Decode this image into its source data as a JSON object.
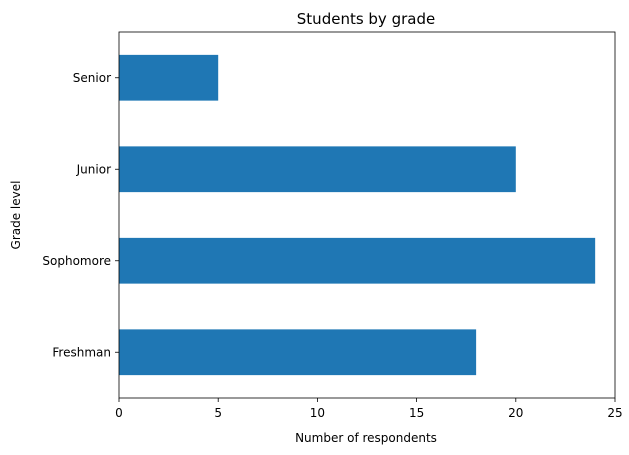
{
  "chart_data": {
    "type": "bar",
    "orientation": "horizontal",
    "title": "Students by grade",
    "xlabel": "Number of respondents",
    "ylabel": "Grade level",
    "categories": [
      "Freshman",
      "Sophomore",
      "Junior",
      "Senior"
    ],
    "values": [
      18,
      24,
      20,
      5
    ],
    "xlim": [
      0,
      25
    ],
    "xticks": [
      0,
      5,
      10,
      15,
      20,
      25
    ],
    "grid": false,
    "bar_color": "#1f77b4"
  }
}
